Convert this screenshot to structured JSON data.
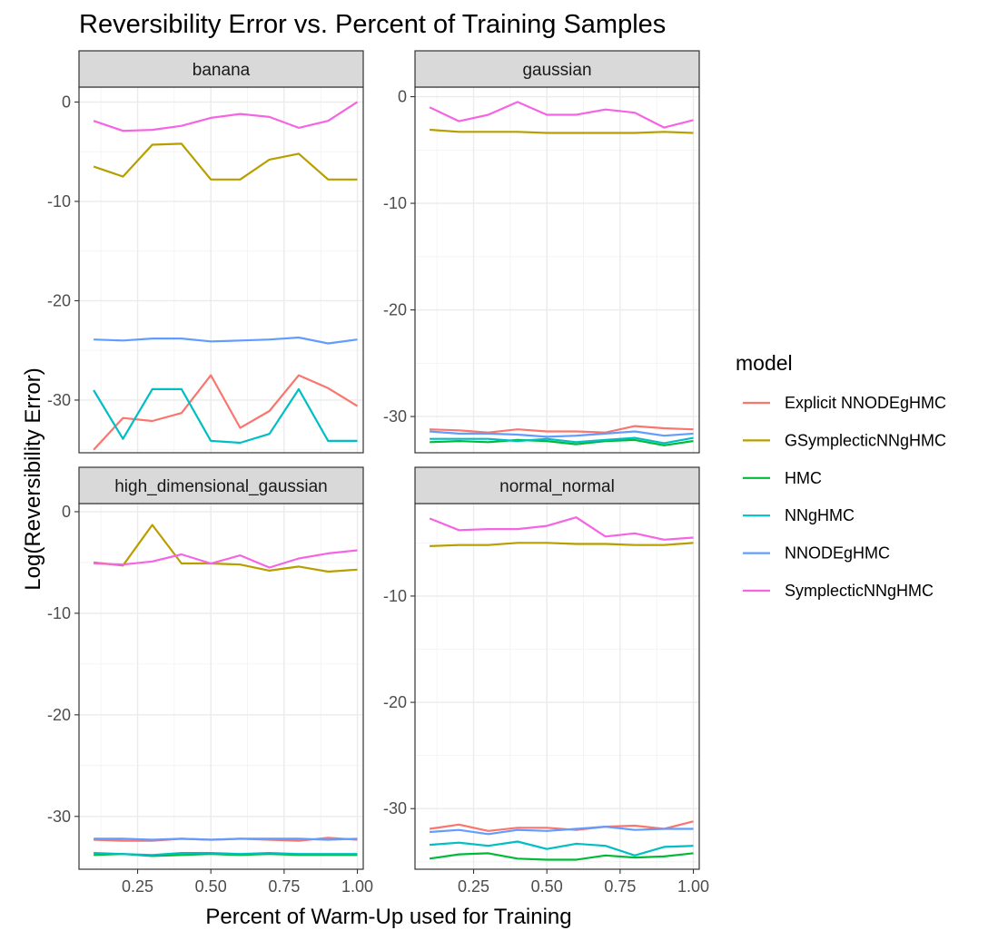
{
  "chart_data": {
    "type": "line",
    "title": "Reversibility Error vs. Percent of Training Samples",
    "xlabel": "Percent of Warm-Up used for Training",
    "ylabel": "Log(Reversibility Error)",
    "x": [
      0.1,
      0.2,
      0.3,
      0.4,
      0.5,
      0.6,
      0.7,
      0.8,
      0.9,
      1.0
    ],
    "xlim": [
      0.05,
      1.02
    ],
    "x_ticks": [
      "0.25",
      "0.50",
      "0.75",
      "1.00"
    ],
    "grid": true,
    "legend": {
      "title": "model",
      "position": "right",
      "entries": [
        "Explicit NNODEgHMC",
        "GSymplecticNNgHMC",
        "HMC",
        "NNgHMC",
        "NNODEgHMC",
        "SymplecticNNgHMC"
      ]
    },
    "colors": {
      "Explicit NNODEgHMC": "#f8766d",
      "GSymplecticNNgHMC": "#b79f00",
      "HMC": "#00ba38",
      "NNgHMC": "#00bfc4",
      "NNODEgHMC": "#619cff",
      "SymplecticNNgHMC": "#f564e3"
    },
    "facets": [
      {
        "name": "banana",
        "ylim": [
          -35.3,
          1.5
        ],
        "y_ticks": [
          "0",
          "-10",
          "-20",
          "-30"
        ],
        "series": [
          {
            "name": "Explicit NNODEgHMC",
            "values": [
              -35.0,
              -31.8,
              -32.1,
              -31.3,
              -27.5,
              -32.8,
              -31.1,
              -27.5,
              -28.8,
              -30.6
            ]
          },
          {
            "name": "GSymplecticNNgHMC",
            "values": [
              -6.5,
              -7.5,
              -4.3,
              -4.2,
              -7.8,
              -7.8,
              -5.8,
              -5.2,
              -7.8,
              -7.8
            ]
          },
          {
            "name": "NNgHMC",
            "values": [
              -29.0,
              -33.9,
              -28.9,
              -28.9,
              -34.1,
              -34.3,
              -33.4,
              -28.9,
              -34.1,
              -34.1
            ]
          },
          {
            "name": "NNODEgHMC",
            "values": [
              -23.9,
              -24.0,
              -23.8,
              -23.8,
              -24.1,
              -24.0,
              -23.9,
              -23.7,
              -24.3,
              -23.9
            ]
          },
          {
            "name": "SymplecticNNgHMC",
            "values": [
              -1.9,
              -2.9,
              -2.8,
              -2.4,
              -1.6,
              -1.2,
              -1.5,
              -2.6,
              -1.9,
              0.0
            ]
          }
        ]
      },
      {
        "name": "gaussian",
        "ylim": [
          -33.4,
          0.9
        ],
        "y_ticks": [
          "0",
          "-10",
          "-20",
          "-30"
        ],
        "series": [
          {
            "name": "Explicit NNODEgHMC",
            "values": [
              -31.2,
              -31.3,
              -31.5,
              -31.2,
              -31.4,
              -31.4,
              -31.5,
              -30.9,
              -31.1,
              -31.2
            ]
          },
          {
            "name": "GSymplecticNNgHMC",
            "values": [
              -3.1,
              -3.3,
              -3.3,
              -3.3,
              -3.4,
              -3.4,
              -3.4,
              -3.4,
              -3.3,
              -3.4
            ]
          },
          {
            "name": "HMC",
            "values": [
              -32.4,
              -32.3,
              -32.4,
              -32.2,
              -32.3,
              -32.6,
              -32.3,
              -32.2,
              -32.7,
              -32.3
            ]
          },
          {
            "name": "NNgHMC",
            "values": [
              -32.1,
              -32.1,
              -32.1,
              -32.3,
              -32.1,
              -32.4,
              -32.2,
              -32.0,
              -32.5,
              -32.0
            ]
          },
          {
            "name": "NNODEgHMC",
            "values": [
              -31.4,
              -31.6,
              -31.6,
              -31.7,
              -31.9,
              -31.8,
              -31.6,
              -31.4,
              -31.8,
              -31.6
            ]
          },
          {
            "name": "SymplecticNNgHMC",
            "values": [
              -1.0,
              -2.3,
              -1.7,
              -0.5,
              -1.7,
              -1.7,
              -1.2,
              -1.5,
              -2.9,
              -2.2
            ]
          }
        ]
      },
      {
        "name": "high_dimensional_gaussian",
        "ylim": [
          -35.2,
          0.8
        ],
        "y_ticks": [
          "0",
          "-10",
          "-20",
          "-30"
        ],
        "series": [
          {
            "name": "Explicit NNODEgHMC",
            "values": [
              -32.3,
              -32.4,
              -32.4,
              -32.2,
              -32.3,
              -32.2,
              -32.3,
              -32.4,
              -32.1,
              -32.3
            ]
          },
          {
            "name": "GSymplecticNNgHMC",
            "values": [
              -5.0,
              -5.3,
              -1.3,
              -5.1,
              -5.1,
              -5.2,
              -5.8,
              -5.4,
              -5.9,
              -5.7
            ]
          },
          {
            "name": "HMC",
            "values": [
              -33.8,
              -33.7,
              -33.9,
              -33.8,
              -33.7,
              -33.8,
              -33.7,
              -33.8,
              -33.8,
              -33.8
            ]
          },
          {
            "name": "NNgHMC",
            "values": [
              -33.6,
              -33.7,
              -33.8,
              -33.6,
              -33.6,
              -33.7,
              -33.6,
              -33.7,
              -33.7,
              -33.7
            ]
          },
          {
            "name": "NNODEgHMC",
            "values": [
              -32.2,
              -32.2,
              -32.3,
              -32.2,
              -32.3,
              -32.2,
              -32.2,
              -32.2,
              -32.3,
              -32.2
            ]
          },
          {
            "name": "SymplecticNNgHMC",
            "values": [
              -5.1,
              -5.2,
              -4.9,
              -4.2,
              -5.1,
              -4.3,
              -5.5,
              -4.6,
              -4.1,
              -3.8
            ]
          }
        ]
      },
      {
        "name": "normal_normal",
        "ylim": [
          -35.7,
          -1.3
        ],
        "y_ticks": [
          "-10",
          "-20",
          "-30"
        ],
        "series": [
          {
            "name": "Explicit NNODEgHMC",
            "values": [
              -31.9,
              -31.5,
              -32.1,
              -31.8,
              -31.8,
              -32.0,
              -31.7,
              -31.6,
              -31.9,
              -31.2
            ]
          },
          {
            "name": "HMC",
            "values": [
              -34.7,
              -34.3,
              -34.2,
              -34.7,
              -34.8,
              -34.8,
              -34.4,
              -34.6,
              -34.5,
              -34.2
            ]
          },
          {
            "name": "NNgHMC",
            "values": [
              -33.4,
              -33.2,
              -33.5,
              -33.1,
              -33.8,
              -33.3,
              -33.5,
              -34.4,
              -33.6,
              -33.5
            ]
          },
          {
            "name": "NNODEgHMC",
            "values": [
              -32.2,
              -32.0,
              -32.4,
              -32.0,
              -32.1,
              -31.9,
              -31.7,
              -32.0,
              -31.9,
              -31.9
            ]
          },
          {
            "name": "GSymplecticNNgHMC",
            "values": [
              -5.3,
              -5.2,
              -5.2,
              -5.0,
              -5.0,
              -5.1,
              -5.1,
              -5.2,
              -5.2,
              -5.0
            ]
          },
          {
            "name": "SymplecticNNgHMC",
            "values": [
              -2.7,
              -3.8,
              -3.7,
              -3.7,
              -3.4,
              -2.6,
              -4.4,
              -4.1,
              -4.7,
              -4.5
            ]
          }
        ]
      }
    ]
  }
}
